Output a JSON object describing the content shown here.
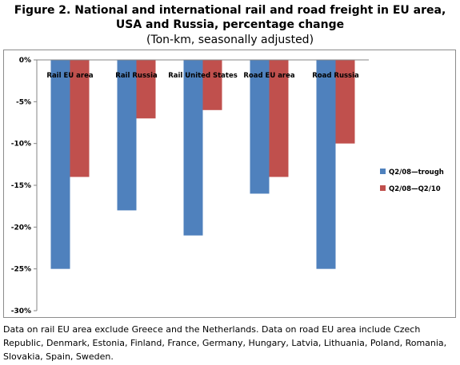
{
  "title": "Figure 2.  National and international rail and road freight in EU area, USA and Russia, percentage change",
  "subtitle": "(Ton-km, seasonally adjusted)",
  "footnote": "Data on rail EU area exclude Greece and the Netherlands. Data on road EU area include Czech Republic, Denmark, Estonia, Finland, France, Germany, Hungary, Latvia, Lithuania, Poland, Romania, Slovakia, Spain,  Sweden.",
  "chart_data": {
    "type": "bar",
    "title": "Figure 2.  National and international rail and road freight in EU area, USA and Russia, percentage change",
    "subtitle": "(Ton-km, seasonally adjusted)",
    "categories": [
      "Rail EU area",
      "Rail Russia",
      "Rail United States",
      "Road EU area",
      "Road Russia"
    ],
    "series": [
      {
        "name": "Q2/08—trough",
        "values": [
          -25,
          -18,
          -21,
          -16,
          -25
        ],
        "color": "#4f81bd"
      },
      {
        "name": "Q2/08—Q2/10",
        "values": [
          -14,
          -7,
          -6,
          -14,
          -10
        ],
        "color": "#c0504d"
      }
    ],
    "y_ticks": [
      "0%",
      "-5%",
      "-10%",
      "-15%",
      "-20%",
      "-25%",
      "-30%"
    ],
    "ylim": [
      -30,
      0
    ],
    "xlabel": "",
    "ylabel": "",
    "grid": false,
    "legend_position": "right",
    "category_labels_position": "top"
  }
}
